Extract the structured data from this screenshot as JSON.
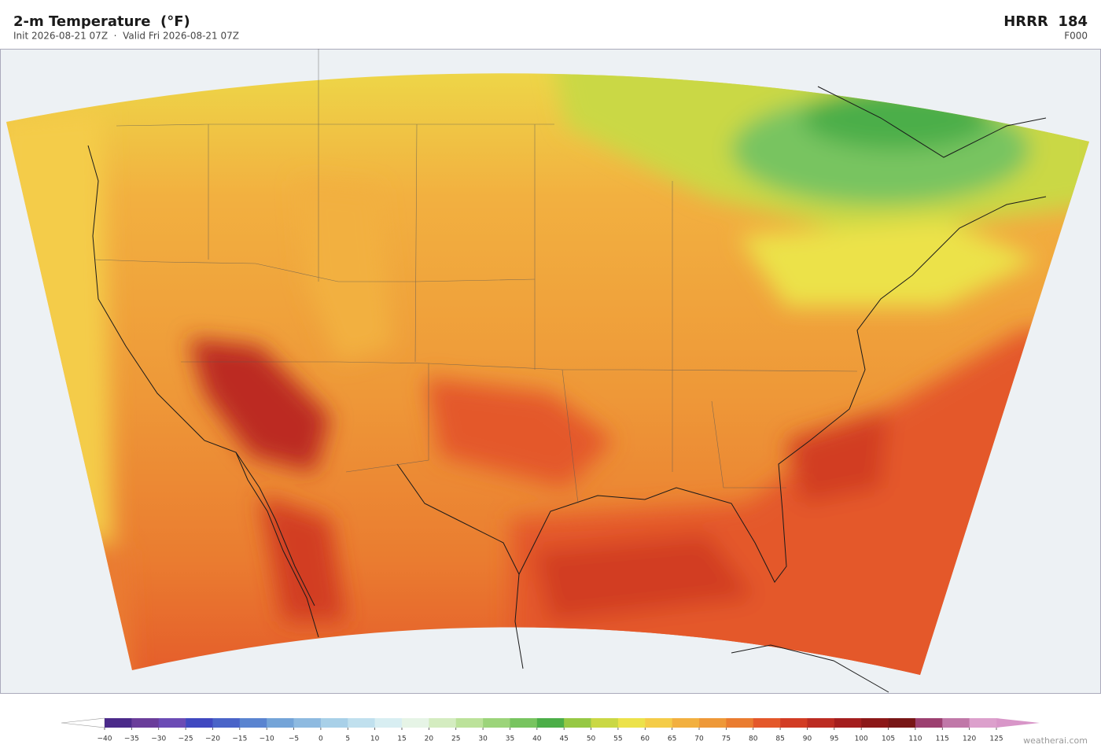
{
  "header": {
    "title": "2-m Temperature  (°F)",
    "subtitle": "Init 2026-08-21 07Z  ·  Valid Fri 2026-08-21 07Z",
    "model": "HRRR  184",
    "forecast_hour": "F000"
  },
  "colorbar": {
    "ticks": [
      {
        "value": -40,
        "label": "−40"
      },
      {
        "value": -35,
        "label": "−35"
      },
      {
        "value": -30,
        "label": "−30"
      },
      {
        "value": -25,
        "label": "−25"
      },
      {
        "value": -20,
        "label": "−20"
      },
      {
        "value": -15,
        "label": "−15"
      },
      {
        "value": -10,
        "label": "−10"
      },
      {
        "value": -5,
        "label": "−5"
      },
      0,
      5,
      10,
      15,
      20,
      25,
      30,
      35,
      40,
      45,
      50,
      55,
      60,
      65,
      70,
      75,
      80,
      85,
      90,
      95,
      100,
      105,
      110,
      115,
      120,
      125
    ],
    "colors": [
      "#4b2a8a",
      "#6a3d9a",
      "#6b4bb5",
      "#4048c0",
      "#4a64c8",
      "#5a84d0",
      "#74a4d8",
      "#8ebae0",
      "#a8d0e8",
      "#c0e0ee",
      "#d8eef2",
      "#e6f4e6",
      "#d4ecc0",
      "#bce29a",
      "#9cd47a",
      "#78c460",
      "#4cae48",
      "#96c844",
      "#cad844",
      "#ece24a",
      "#f4cc48",
      "#f2b040",
      "#ee9838",
      "#ea7c30",
      "#e4582a",
      "#d23c24",
      "#bc2c22",
      "#a41e1e",
      "#8c1818",
      "#781616",
      "#9c4070",
      "#c078a8",
      "#dca0cc"
    ],
    "under_color": "#ffffff",
    "over_color": "#d896c8"
  },
  "footer": {
    "watermark": "weatherai.com"
  }
}
